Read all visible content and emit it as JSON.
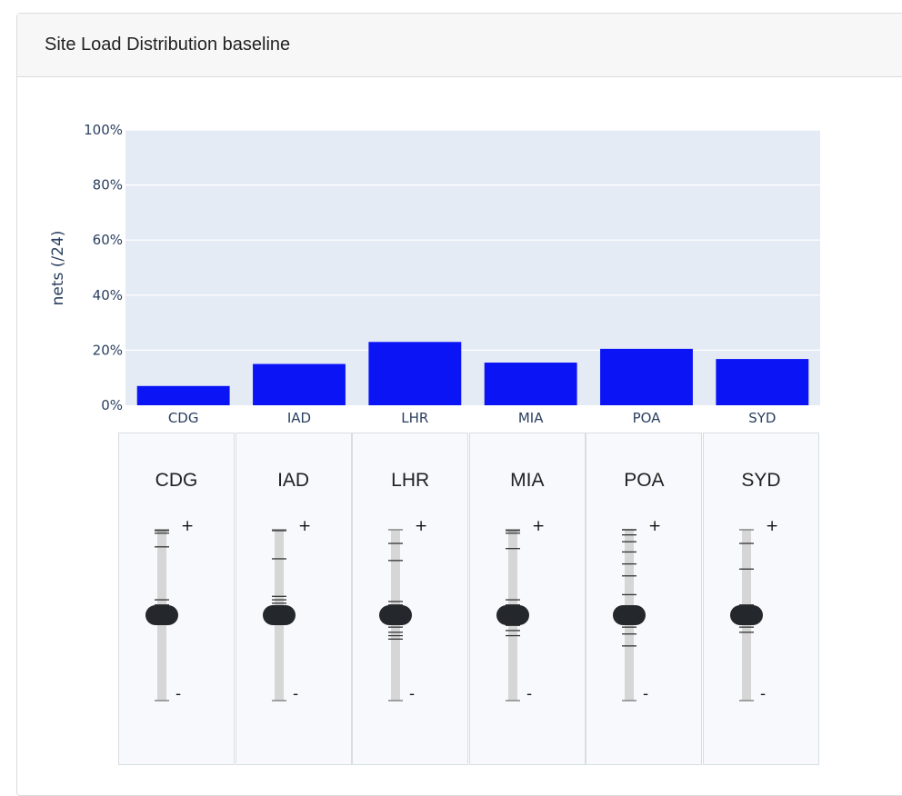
{
  "card": {
    "title": "Site Load Distribution baseline"
  },
  "chart_data": {
    "type": "bar",
    "categories": [
      "CDG",
      "IAD",
      "LHR",
      "MIA",
      "POA",
      "SYD"
    ],
    "values": [
      7,
      15,
      23,
      15.5,
      20.5,
      16.8
    ],
    "ylabel": "nets (/24)",
    "xlabel": "",
    "ylim": [
      0,
      100
    ],
    "yticks": [
      0,
      20,
      40,
      60,
      80,
      100
    ],
    "ytick_labels": [
      "0%",
      "20%",
      "40%",
      "60%",
      "80%",
      "100%"
    ],
    "grid": true,
    "bar_color": "#0a14f5",
    "plot_bg": "#e5ebf5"
  },
  "sliders": {
    "plus_label": "+",
    "minus_label": "-",
    "items": [
      {
        "label": "CDG",
        "level": 0.5,
        "ticks": [
          0.005,
          0.02,
          0.1,
          0.41,
          0.44,
          0.49,
          0.51,
          0.53
        ]
      },
      {
        "label": "IAD",
        "level": 0.5,
        "ticks": [
          0.005,
          0.17,
          0.39,
          0.41,
          0.43,
          0.45,
          0.47,
          0.49,
          0.51,
          0.53
        ]
      },
      {
        "label": "LHR",
        "level": 0.5,
        "ticks": [
          0.08,
          0.18,
          0.42,
          0.44,
          0.46,
          0.48,
          0.52,
          0.54,
          0.57,
          0.6,
          0.62,
          0.64
        ]
      },
      {
        "label": "MIA",
        "level": 0.5,
        "ticks": [
          0.005,
          0.02,
          0.11,
          0.41,
          0.44,
          0.47,
          0.53,
          0.56,
          0.59,
          0.62
        ]
      },
      {
        "label": "POA",
        "level": 0.5,
        "ticks": [
          0.0,
          0.03,
          0.07,
          0.13,
          0.2,
          0.27,
          0.38,
          0.46,
          0.48,
          0.51,
          0.53,
          0.55,
          0.57,
          0.61,
          0.68
        ]
      },
      {
        "label": "SYD",
        "level": 0.5,
        "ticks": [
          0.08,
          0.23,
          0.44,
          0.47,
          0.49,
          0.51,
          0.54,
          0.57,
          0.6
        ]
      }
    ]
  }
}
